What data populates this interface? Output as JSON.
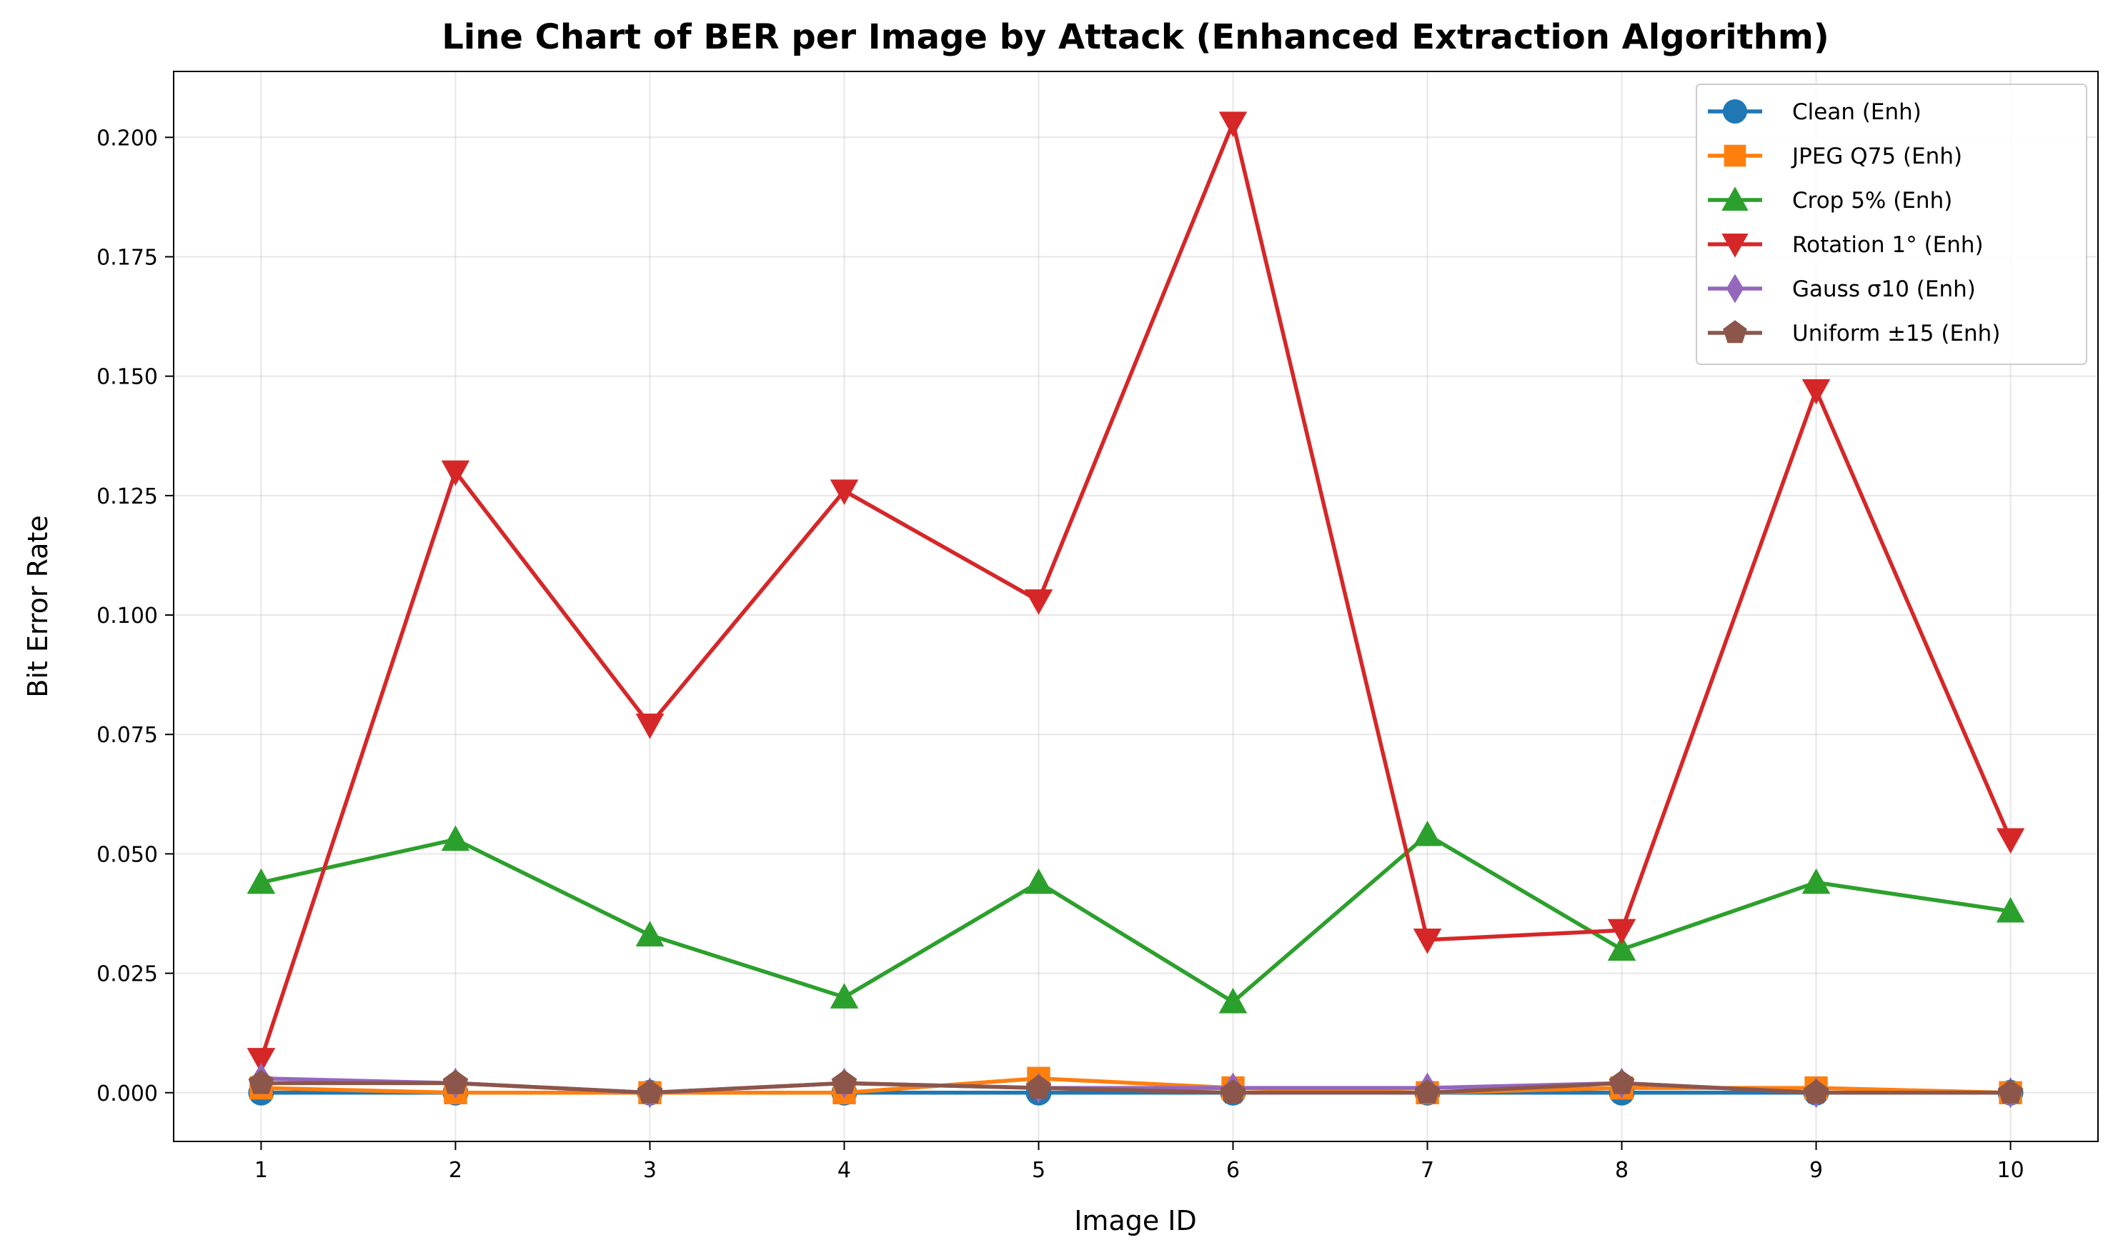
{
  "chart_data": {
    "type": "line",
    "title": "Line Chart of BER per Image by Attack (Enhanced Extraction Algorithm)",
    "xlabel": "Image ID",
    "ylabel": "Bit Error Rate",
    "x": [
      1,
      2,
      3,
      4,
      5,
      6,
      7,
      8,
      9,
      10
    ],
    "x_tick_labels": [
      "1",
      "2",
      "3",
      "4",
      "5",
      "6",
      "7",
      "8",
      "9",
      "10"
    ],
    "xlim": [
      0.55,
      10.45
    ],
    "ylim": [
      -0.0102,
      0.2138
    ],
    "y_ticks": [
      0.0,
      0.025,
      0.05,
      0.075,
      0.1,
      0.125,
      0.15,
      0.175,
      0.2
    ],
    "y_tick_labels": [
      "0.000",
      "0.025",
      "0.050",
      "0.075",
      "0.100",
      "0.125",
      "0.150",
      "0.175",
      "0.200"
    ],
    "grid": true,
    "legend_position": "top-right",
    "series": [
      {
        "name": "Clean (Enh)",
        "color": "#1f77b4",
        "marker": "circle",
        "values": [
          0.0,
          0.0,
          0.0,
          0.0,
          0.0,
          0.0,
          0.0,
          0.0,
          0.0,
          0.0
        ]
      },
      {
        "name": "JPEG Q75 (Enh)",
        "color": "#ff7f0e",
        "marker": "square",
        "values": [
          0.001,
          0.0,
          0.0,
          0.0,
          0.003,
          0.001,
          0.0,
          0.001,
          0.001,
          0.0
        ]
      },
      {
        "name": "Crop 5% (Enh)",
        "color": "#2ca02c",
        "marker": "triangle-up",
        "values": [
          0.044,
          0.053,
          0.033,
          0.02,
          0.044,
          0.019,
          0.054,
          0.03,
          0.044,
          0.038
        ]
      },
      {
        "name": "Rotation 1° (Enh)",
        "color": "#d62728",
        "marker": "triangle-down",
        "values": [
          0.007,
          0.13,
          0.077,
          0.126,
          0.103,
          0.203,
          0.032,
          0.034,
          0.147,
          0.053
        ]
      },
      {
        "name": "Gauss σ10 (Enh)",
        "color": "#9467bd",
        "marker": "diamond",
        "values": [
          0.003,
          0.002,
          0.0,
          0.002,
          0.001,
          0.001,
          0.001,
          0.002,
          0.0,
          0.0
        ]
      },
      {
        "name": "Uniform ±15 (Enh)",
        "color": "#8c564b",
        "marker": "pentagon",
        "values": [
          0.002,
          0.002,
          0.0,
          0.002,
          0.001,
          0.0,
          0.0,
          0.002,
          0.0,
          0.0
        ]
      }
    ]
  }
}
